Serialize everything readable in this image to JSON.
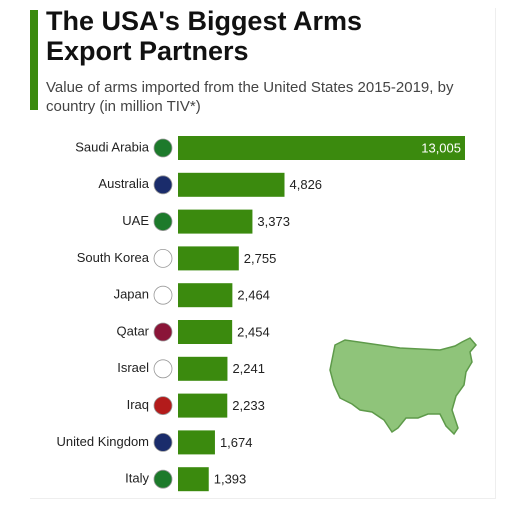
{
  "chart_data": {
    "type": "bar",
    "orientation": "horizontal",
    "title": "The USA's Biggest Arms Export Partners",
    "subtitle": "Value of arms imported from the United States 2015-2019, by country (in million TIV*)",
    "categories": [
      "Saudi Arabia",
      "Australia",
      "UAE",
      "South Korea",
      "Japan",
      "Qatar",
      "Israel",
      "Iraq",
      "United Kingdom",
      "Italy"
    ],
    "values": [
      13005,
      4826,
      3373,
      2755,
      2464,
      2454,
      2241,
      2233,
      1674,
      1393
    ],
    "value_labels": [
      "13,005",
      "4,826",
      "3,373",
      "2,755",
      "2,464",
      "2,454",
      "2,241",
      "2,233",
      "1,674",
      "1,393"
    ],
    "color": "#3b8a0e"
  }
}
